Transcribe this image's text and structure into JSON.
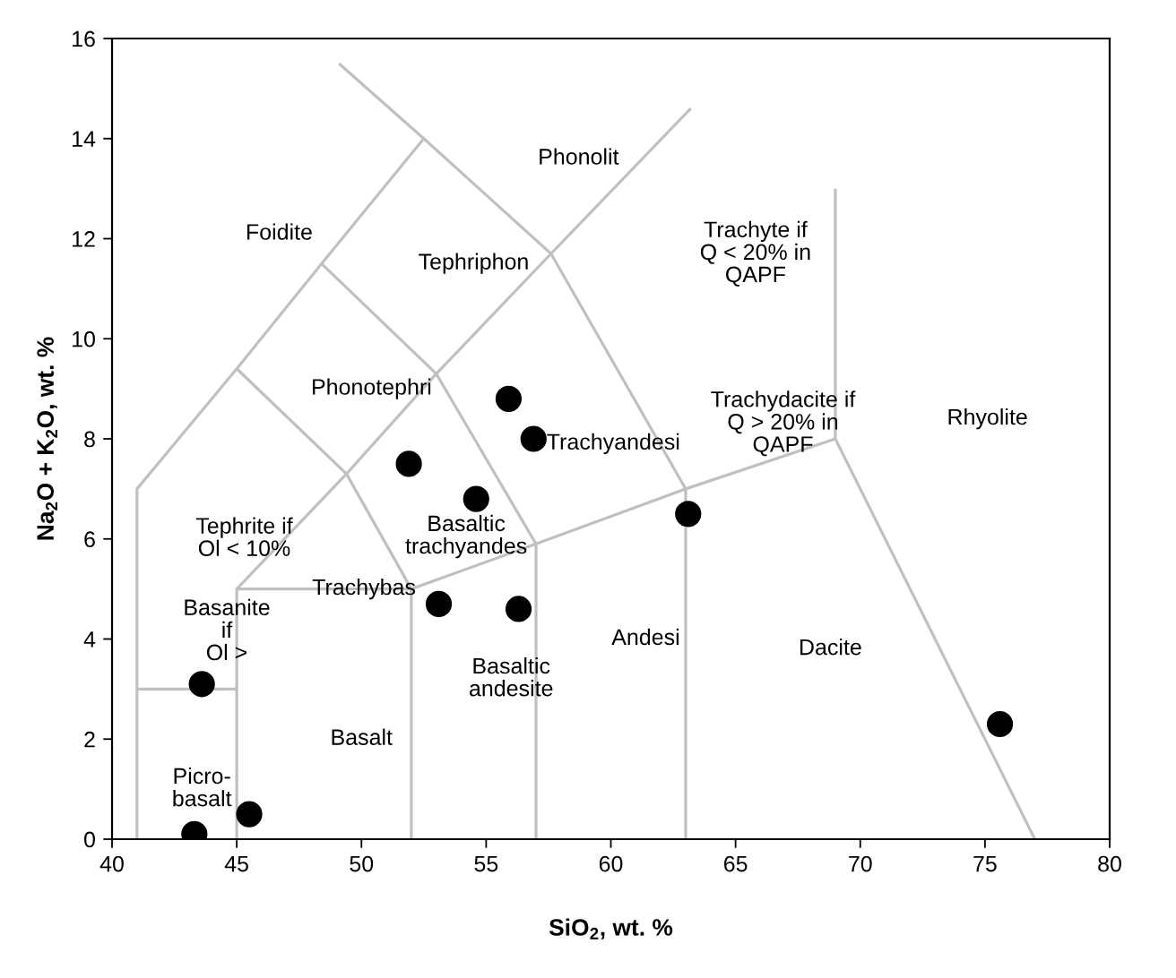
{
  "chart_data": {
    "type": "scatter",
    "xlabel": "SiO$_{2}$, wt. %",
    "ylabel": "Na$_{2}$O + K$_{2}$O, wt. %",
    "xlim": [
      40,
      80
    ],
    "ylim": [
      0,
      16
    ],
    "xticks": [
      40,
      45,
      50,
      55,
      60,
      65,
      70,
      75,
      80
    ],
    "yticks": [
      0,
      2,
      4,
      6,
      8,
      10,
      12,
      14,
      16
    ],
    "marker": "circle",
    "series": [
      {
        "type": "line",
        "color": "#c0c0c0",
        "marker": "none",
        "line_style": "solid",
        "x": [
          41,
          41,
          45,
          48.4,
          52.5,
          49.1
        ],
        "values": [
          0,
          7,
          9.4,
          11.5,
          14,
          15.5
        ]
      },
      {
        "type": "line",
        "color": "#c0c0c0",
        "marker": "none",
        "line_style": "solid",
        "x": [
          41,
          45
        ],
        "values": [
          3,
          3
        ]
      },
      {
        "type": "line",
        "color": "#c0c0c0",
        "marker": "none",
        "line_style": "solid",
        "x": [
          45,
          45,
          52,
          52
        ],
        "values": [
          0,
          5,
          5,
          0
        ]
      },
      {
        "type": "line",
        "color": "#c0c0c0",
        "marker": "none",
        "line_style": "solid",
        "x": [
          45,
          49.4,
          53,
          57.6,
          63.2
        ],
        "values": [
          5,
          7.3,
          9.3,
          11.7,
          14.6
        ]
      },
      {
        "type": "line",
        "color": "#c0c0c0",
        "marker": "none",
        "line_style": "solid",
        "x": [
          45,
          49.4,
          52
        ],
        "values": [
          9.4,
          7.3,
          5
        ]
      },
      {
        "type": "line",
        "color": "#c0c0c0",
        "marker": "none",
        "line_style": "solid",
        "x": [
          48.4,
          53,
          57,
          57
        ],
        "values": [
          11.5,
          9.3,
          5.9,
          0
        ]
      },
      {
        "type": "line",
        "color": "#c0c0c0",
        "marker": "none",
        "line_style": "solid",
        "x": [
          52.5,
          57.6,
          63,
          63
        ],
        "values": [
          14,
          11.7,
          7,
          0
        ]
      },
      {
        "type": "line",
        "color": "#c0c0c0",
        "marker": "none",
        "line_style": "solid",
        "x": [
          52,
          57,
          63,
          69,
          77
        ],
        "values": [
          5,
          5.9,
          7,
          8,
          0
        ]
      },
      {
        "type": "line",
        "color": "#c0c0c0",
        "marker": "none",
        "line_style": "solid",
        "x": [
          69,
          69
        ],
        "values": [
          8,
          13
        ]
      },
      {
        "color": "#000000",
        "x": [
          43.3,
          45.5,
          43.6,
          56.9,
          54.6,
          53.1,
          56.3,
          63.1,
          75.6,
          51.9,
          55.9
        ],
        "values": [
          0.1,
          0.5,
          3.1,
          8.0,
          6.8,
          4.7,
          4.6,
          6.5,
          2.3,
          7.5,
          8.8
        ]
      }
    ],
    "annotations": [
      "Phonolit",
      "Foidite",
      "Tephriphon",
      "Trachyte if\nQ < 20% in\nQAPF",
      "Phonotephri",
      "Trachyandesi",
      "Basaltic\ntrachyandes",
      "Tephrite if\nOl < 10%",
      "Trachybas",
      "Basanite\nif\nOl >",
      "Picro-\nbasalt",
      "Basalt",
      "Basaltic\nandesite",
      "Andesi",
      "Trachydacite if\nQ > 20% in\nQAPF",
      "Dacite",
      "Rhyolite"
    ]
  }
}
